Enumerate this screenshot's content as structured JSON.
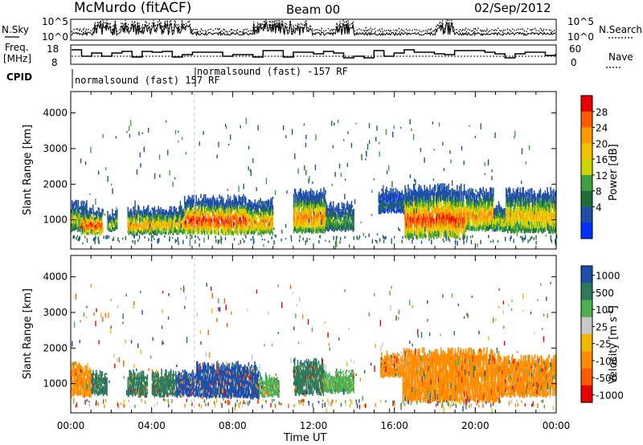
{
  "header": {
    "station": "McMurdo (fitACF)",
    "beam": "Beam 00",
    "date": "02/Sep/2012"
  },
  "top_panels": {
    "nsky_label": "N.Sky",
    "nsearch_label": "N.Search",
    "freq_label_1": "Freq.",
    "freq_label_2": "[MHz]",
    "nave_label": "Nave",
    "cpid_label": "CPID",
    "nsky_ticks": [
      "10^5",
      "10^0"
    ],
    "nsearch_ticks": [
      "10^5",
      "10^0"
    ],
    "freq_ticks": [
      "18",
      "8"
    ],
    "nave_ticks": [
      "60",
      "0"
    ],
    "cpid_segments": [
      {
        "label": "normalsound (fast) 157 RF",
        "start_hour": 0
      },
      {
        "label": "normalsound (fast) -157 RF",
        "start_hour": 6.1
      }
    ]
  },
  "chart_data": [
    {
      "type": "heatmap",
      "panel": "power",
      "ylabel": "Slant Range [km]",
      "yticks": [
        "4000",
        "3000",
        "2000",
        "1000"
      ],
      "ylim": [
        180,
        4600
      ],
      "xlim": [
        0,
        24
      ],
      "colorbar_label": "Power [dB]",
      "colorbar_ticks": [
        "28",
        "24",
        "20",
        "16",
        "12",
        "8",
        "4"
      ],
      "colorbar_colors": [
        "#e80000",
        "#ff5a00",
        "#ff9a00",
        "#f2c200",
        "#cdd400",
        "#3fa03f",
        "#1f6e3a",
        "#1f4ea8",
        "#0030ff"
      ],
      "scatter_blocks": [
        {
          "t0": 0.0,
          "t1": 0.8,
          "r0": 700,
          "r1": 1500,
          "peak": 0.55
        },
        {
          "t0": 0.5,
          "t1": 1.6,
          "r0": 600,
          "r1": 1300,
          "peak": 0.95
        },
        {
          "t0": 1.8,
          "t1": 2.3,
          "r0": 700,
          "r1": 1200,
          "peak": 0.5
        },
        {
          "t0": 2.8,
          "t1": 4.0,
          "r0": 600,
          "r1": 1300,
          "peak": 0.8
        },
        {
          "t0": 4.0,
          "t1": 5.6,
          "r0": 600,
          "r1": 1300,
          "peak": 0.7
        },
        {
          "t0": 5.6,
          "t1": 8.7,
          "r0": 600,
          "r1": 1600,
          "peak": 1.0
        },
        {
          "t0": 8.7,
          "t1": 10.0,
          "r0": 600,
          "r1": 1500,
          "peak": 0.8
        },
        {
          "t0": 11.0,
          "t1": 12.6,
          "r0": 650,
          "r1": 1800,
          "peak": 0.85
        },
        {
          "t0": 12.6,
          "t1": 14.0,
          "r0": 700,
          "r1": 1400,
          "peak": 0.4
        },
        {
          "t0": 15.2,
          "t1": 16.5,
          "r0": 1200,
          "r1": 1800,
          "peak": 0.2
        },
        {
          "t0": 16.5,
          "t1": 19.5,
          "r0": 500,
          "r1": 1900,
          "peak": 0.95
        },
        {
          "t0": 19.5,
          "t1": 20.9,
          "r0": 700,
          "r1": 1800,
          "peak": 0.8
        },
        {
          "t0": 20.9,
          "t1": 21.5,
          "r0": 700,
          "r1": 1400,
          "peak": 0.55
        },
        {
          "t0": 21.5,
          "t1": 24.0,
          "r0": 650,
          "r1": 1800,
          "peak": 0.7
        }
      ]
    },
    {
      "type": "heatmap",
      "panel": "velocity",
      "ylabel": "Slant Range [km]",
      "yticks": [
        "4000",
        "3000",
        "2000",
        "1000"
      ],
      "ylim": [
        180,
        4600
      ],
      "xlim": [
        0,
        24
      ],
      "xticks": [
        "00:00",
        "04:00",
        "08:00",
        "12:00",
        "16:00",
        "20:00",
        "00:00"
      ],
      "xlabel": "Time UT",
      "colorbar_label": "Velocity [m s-1]",
      "colorbar_label_main": "Velocity [m s",
      "colorbar_label_exp": "-1",
      "colorbar_label_end": "]",
      "colorbar_ticks": [
        "1000",
        "500",
        "100",
        "25",
        "-25",
        "-100",
        "-500",
        "-1000"
      ],
      "colorbar_colors": [
        "#1f4ea8",
        "#2d7a5a",
        "#4caf50",
        "#c8c8c8",
        "#f2b800",
        "#ff8c00",
        "#ff5a00",
        "#e80000"
      ],
      "scatter_blocks": [
        {
          "t0": 0.0,
          "t1": 1.0,
          "r0": 650,
          "r1": 1500,
          "color": "#ff8c00"
        },
        {
          "t0": 1.0,
          "t1": 1.8,
          "r0": 700,
          "r1": 1300,
          "color": "#2d7a5a"
        },
        {
          "t0": 2.8,
          "t1": 3.8,
          "r0": 650,
          "r1": 1300,
          "color": "#2d7a5a"
        },
        {
          "t0": 4.0,
          "t1": 5.2,
          "r0": 650,
          "r1": 1300,
          "color": "#2d7a5a"
        },
        {
          "t0": 5.2,
          "t1": 6.2,
          "r0": 650,
          "r1": 1300,
          "color": "#1f4ea8"
        },
        {
          "t0": 6.2,
          "t1": 9.3,
          "r0": 600,
          "r1": 1500,
          "color": "#1f4ea8"
        },
        {
          "t0": 9.3,
          "t1": 10.3,
          "r0": 650,
          "r1": 1200,
          "color": "#4caf50"
        },
        {
          "t0": 11.0,
          "t1": 12.5,
          "r0": 700,
          "r1": 1600,
          "color": "#2d7a5a"
        },
        {
          "t0": 12.5,
          "t1": 14.0,
          "r0": 750,
          "r1": 1300,
          "color": "#4caf50"
        },
        {
          "t0": 15.3,
          "t1": 16.4,
          "r0": 1200,
          "r1": 1800,
          "color": "#ff8c00"
        },
        {
          "t0": 16.4,
          "t1": 21.2,
          "r0": 500,
          "r1": 1900,
          "color": "#ff8c00"
        },
        {
          "t0": 21.2,
          "t1": 24.0,
          "r0": 650,
          "r1": 1700,
          "color": "#ff8c00"
        }
      ]
    }
  ]
}
